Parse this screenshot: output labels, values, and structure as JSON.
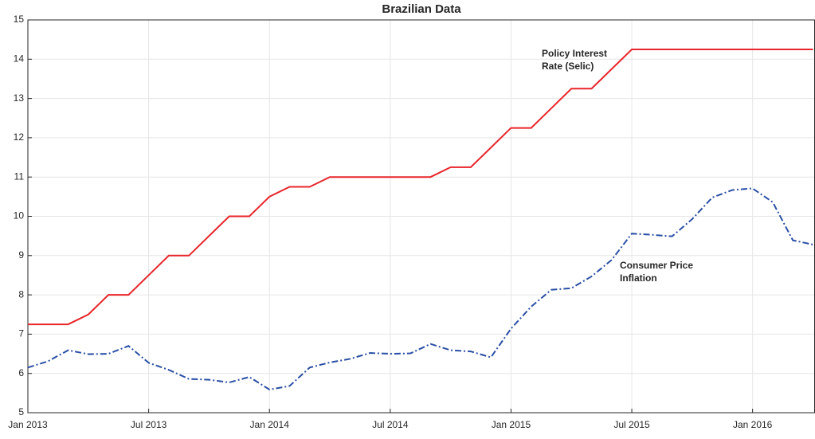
{
  "chart_data": {
    "type": "line",
    "title": "Brazilian Data",
    "x": [
      "2013-01",
      "2013-02",
      "2013-03",
      "2013-04",
      "2013-05",
      "2013-06",
      "2013-07",
      "2013-08",
      "2013-09",
      "2013-10",
      "2013-11",
      "2013-12",
      "2014-01",
      "2014-02",
      "2014-03",
      "2014-04",
      "2014-05",
      "2014-06",
      "2014-07",
      "2014-08",
      "2014-09",
      "2014-10",
      "2014-11",
      "2014-12",
      "2015-01",
      "2015-02",
      "2015-03",
      "2015-04",
      "2015-05",
      "2015-06",
      "2015-07",
      "2015-08",
      "2015-09",
      "2015-10",
      "2015-11",
      "2015-12",
      "2016-01",
      "2016-02",
      "2016-03",
      "2016-04"
    ],
    "series": [
      {
        "name": "Policy Interest Rate (Selic)",
        "color": "#e8262b",
        "style": "solid",
        "values": [
          7.25,
          7.25,
          7.25,
          7.5,
          8,
          8,
          8.5,
          9,
          9,
          9.5,
          10,
          10,
          10.5,
          10.75,
          10.75,
          11,
          11,
          11,
          11,
          11,
          11,
          11.25,
          11.25,
          11.75,
          12.25,
          12.25,
          12.75,
          13.25,
          13.25,
          13.75,
          14.25,
          14.25,
          14.25,
          14.25,
          14.25,
          14.25,
          14.25,
          14.25,
          14.25,
          14.25
        ]
      },
      {
        "name": "Consumer Price Inflation",
        "color": "#2a4fa5",
        "style": "dashdot",
        "values": [
          6.15,
          6.31,
          6.59,
          6.49,
          6.5,
          6.7,
          6.27,
          6.09,
          5.86,
          5.84,
          5.77,
          5.91,
          5.59,
          5.68,
          6.15,
          6.28,
          6.37,
          6.52,
          6.5,
          6.51,
          6.75,
          6.59,
          6.56,
          6.41,
          7.14,
          7.7,
          8.13,
          8.17,
          8.47,
          8.89,
          9.56,
          9.53,
          9.49,
          9.93,
          10.48,
          10.67,
          10.71,
          10.36,
          9.39,
          9.28
        ]
      }
    ],
    "annotations": [
      [
        "Policy Interest",
        "Rate (Selic)"
      ],
      [
        "Consumer Price",
        "Inflation"
      ]
    ],
    "xlim": [
      "2013-01",
      "2016-04"
    ],
    "xticks": [
      {
        "value": "2013-01",
        "label": "Jan 2013"
      },
      {
        "value": "2013-07",
        "label": "Jul 2013"
      },
      {
        "value": "2014-01",
        "label": "Jan 2014"
      },
      {
        "value": "2014-07",
        "label": "Jul 2014"
      },
      {
        "value": "2015-01",
        "label": "Jan 2015"
      },
      {
        "value": "2015-07",
        "label": "Jul 2015"
      },
      {
        "value": "2016-01",
        "label": "Jan 2016"
      }
    ],
    "ylim": [
      5,
      15
    ],
    "yticks": [
      5,
      6,
      7,
      8,
      9,
      10,
      11,
      12,
      13,
      14,
      15
    ],
    "grid": true
  }
}
